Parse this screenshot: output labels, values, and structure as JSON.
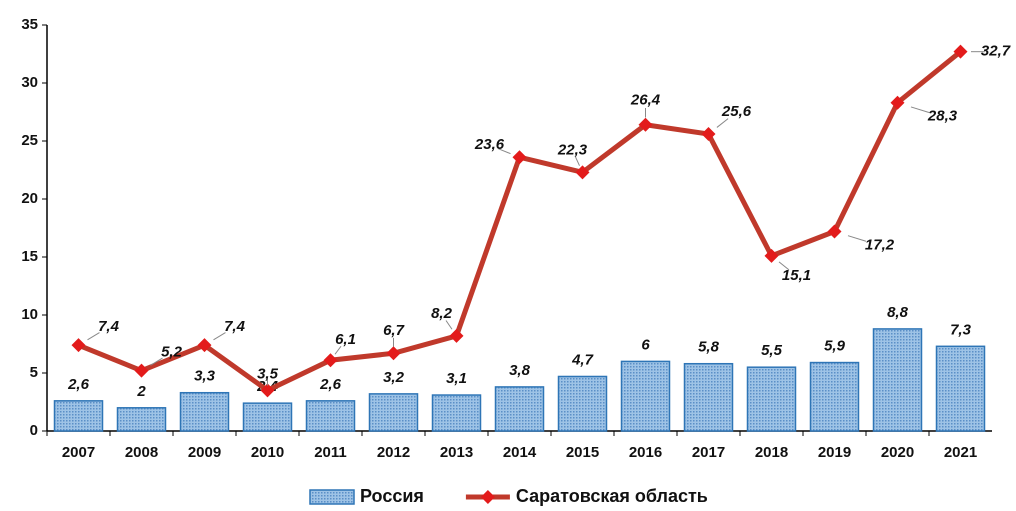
{
  "chart_data": {
    "type": "combo",
    "categories": [
      "2007",
      "2008",
      "2009",
      "2010",
      "2011",
      "2012",
      "2013",
      "2014",
      "2015",
      "2016",
      "2017",
      "2018",
      "2019",
      "2020",
      "2021"
    ],
    "series": [
      {
        "name": "Россия",
        "type": "bar",
        "color": "#2e75b6",
        "values": [
          2.6,
          2,
          3.3,
          2.4,
          2.6,
          3.2,
          3.1,
          3.8,
          4.7,
          6,
          5.8,
          5.5,
          5.9,
          8.8,
          7.3
        ],
        "value_labels": [
          "2,6",
          "2",
          "3,3",
          "2,4",
          "2,6",
          "3,2",
          "3,1",
          "3,8",
          "4,7",
          "6",
          "5,8",
          "5,5",
          "5,9",
          "8,8",
          "7,3"
        ]
      },
      {
        "name": "Саратовская область",
        "type": "line",
        "color": "#c0392b",
        "values": [
          7.4,
          5.2,
          7.4,
          3.5,
          6.1,
          6.7,
          8.2,
          23.6,
          22.3,
          26.4,
          25.6,
          15.1,
          17.2,
          28.3,
          32.7
        ],
        "value_labels": [
          "7,4",
          "5,2",
          "7,4",
          "3,5",
          "6,1",
          "6,7",
          "8,2",
          "23,6",
          "22,3",
          "26,4",
          "25,6",
          "15,1",
          "17,2",
          "28,3",
          "32,7"
        ]
      }
    ],
    "ylim": [
      0,
      35
    ],
    "yticks": [
      0,
      5,
      10,
      15,
      20,
      25,
      30,
      35
    ],
    "legend": "bottom"
  }
}
